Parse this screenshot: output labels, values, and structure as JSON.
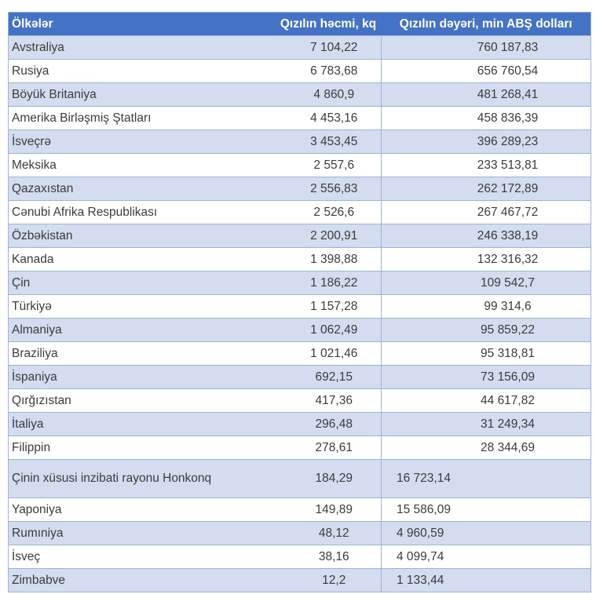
{
  "colors": {
    "header_bg": "#4472c4",
    "header_text": "#ffffff",
    "stripe_row_bg": "#d3ddef",
    "plain_row_bg": "#ffffff",
    "border": "#9db3d9",
    "body_text": "#3b3b3b"
  },
  "table": {
    "columns": [
      {
        "label": "Ölkələr"
      },
      {
        "label": "Qızılın həcmi, kq"
      },
      {
        "label": "Qızılın dəyəri, min ABŞ dolları"
      }
    ],
    "rows": [
      {
        "country": "Avstraliya",
        "volume": "7 104,22",
        "value": "760 187,83"
      },
      {
        "country": "Rusiya",
        "volume": "6 783,68",
        "value": "656 760,54"
      },
      {
        "country": "Böyük Britaniya",
        "volume": "4 860,9",
        "value": "481 268,41"
      },
      {
        "country": "Amerika Birləşmiş Ştatları",
        "volume": "4 453,16",
        "value": "458 836,39"
      },
      {
        "country": "İsveçrə",
        "volume": "3 453,45",
        "value": "396 289,23"
      },
      {
        "country": "Meksika",
        "volume": "2 557,6",
        "value": "233 513,81"
      },
      {
        "country": "Qazaxıstan",
        "volume": "2 556,83",
        "value": "262 172,89"
      },
      {
        "country": "Cənubi Afrika Respublikası",
        "volume": "2 526,6",
        "value": "267 467,72"
      },
      {
        "country": "Özbəkistan",
        "volume": "2 200,91",
        "value": "246 338,19"
      },
      {
        "country": "Kanada",
        "volume": "1 398,88",
        "value": "132 316,32"
      },
      {
        "country": "Çin",
        "volume": "1 186,22",
        "value": "109 542,7"
      },
      {
        "country": "Türkiyə",
        "volume": "1 157,28",
        "value": "99 314,6"
      },
      {
        "country": "Almaniya",
        "volume": "1 062,49",
        "value": "95 859,22"
      },
      {
        "country": "Braziliya",
        "volume": "1 021,46",
        "value": "95 318,81"
      },
      {
        "country": "İspaniya",
        "volume": "692,15",
        "value": "73 156,09"
      },
      {
        "country": "Qırğızıstan",
        "volume": "417,36",
        "value": "44 617,82"
      },
      {
        "country": "İtaliya",
        "volume": "296,48",
        "value": "31 249,34"
      },
      {
        "country": "Filippin",
        "volume": "278,61",
        "value": "28 344,69"
      },
      {
        "country": "Çinin xüsusi inzibati rayonu Honkonq",
        "volume": "184,29",
        "value": "16 723,14",
        "tall": true,
        "value_align": "left"
      },
      {
        "country": "Yaponiya",
        "volume": "149,89",
        "value": "15 586,09",
        "value_align": "left"
      },
      {
        "country": "Rumıniya",
        "volume": "48,12",
        "value": "4 960,59",
        "value_align": "left"
      },
      {
        "country": "İsveç",
        "volume": "38,16",
        "value": "4 099,74",
        "value_align": "left"
      },
      {
        "country": "Zimbabve",
        "volume": "12,2",
        "value": "1 133,44",
        "value_align": "left"
      }
    ]
  },
  "chart_data": {
    "type": "table",
    "title": "",
    "columns": [
      "Ölkələr",
      "Qızılın həcmi, kq",
      "Qızılın dəyəri, min ABŞ dolları"
    ],
    "rows": [
      [
        "Avstraliya",
        7104.22,
        760187.83
      ],
      [
        "Rusiya",
        6783.68,
        656760.54
      ],
      [
        "Böyük Britaniya",
        4860.9,
        481268.41
      ],
      [
        "Amerika Birləşmiş Ştatları",
        4453.16,
        458836.39
      ],
      [
        "İsveçrə",
        3453.45,
        396289.23
      ],
      [
        "Meksika",
        2557.6,
        233513.81
      ],
      [
        "Qazaxıstan",
        2556.83,
        262172.89
      ],
      [
        "Cənubi Afrika Respublikası",
        2526.6,
        267467.72
      ],
      [
        "Özbəkistan",
        2200.91,
        246338.19
      ],
      [
        "Kanada",
        1398.88,
        132316.32
      ],
      [
        "Çin",
        1186.22,
        109542.7
      ],
      [
        "Türkiyə",
        1157.28,
        99314.6
      ],
      [
        "Almaniya",
        1062.49,
        95859.22
      ],
      [
        "Braziliya",
        1021.46,
        95318.81
      ],
      [
        "İspaniya",
        692.15,
        73156.09
      ],
      [
        "Qırğızıstan",
        417.36,
        44617.82
      ],
      [
        "İtaliya",
        296.48,
        31249.34
      ],
      [
        "Filippin",
        278.61,
        28344.69
      ],
      [
        "Çinin xüsusi inzibati rayonu Honkonq",
        184.29,
        16723.14
      ],
      [
        "Yaponiya",
        149.89,
        15586.09
      ],
      [
        "Rumıniya",
        48.12,
        4960.59
      ],
      [
        "İsveç",
        38.16,
        4099.74
      ],
      [
        "Zimbabve",
        12.2,
        1133.44
      ]
    ]
  }
}
